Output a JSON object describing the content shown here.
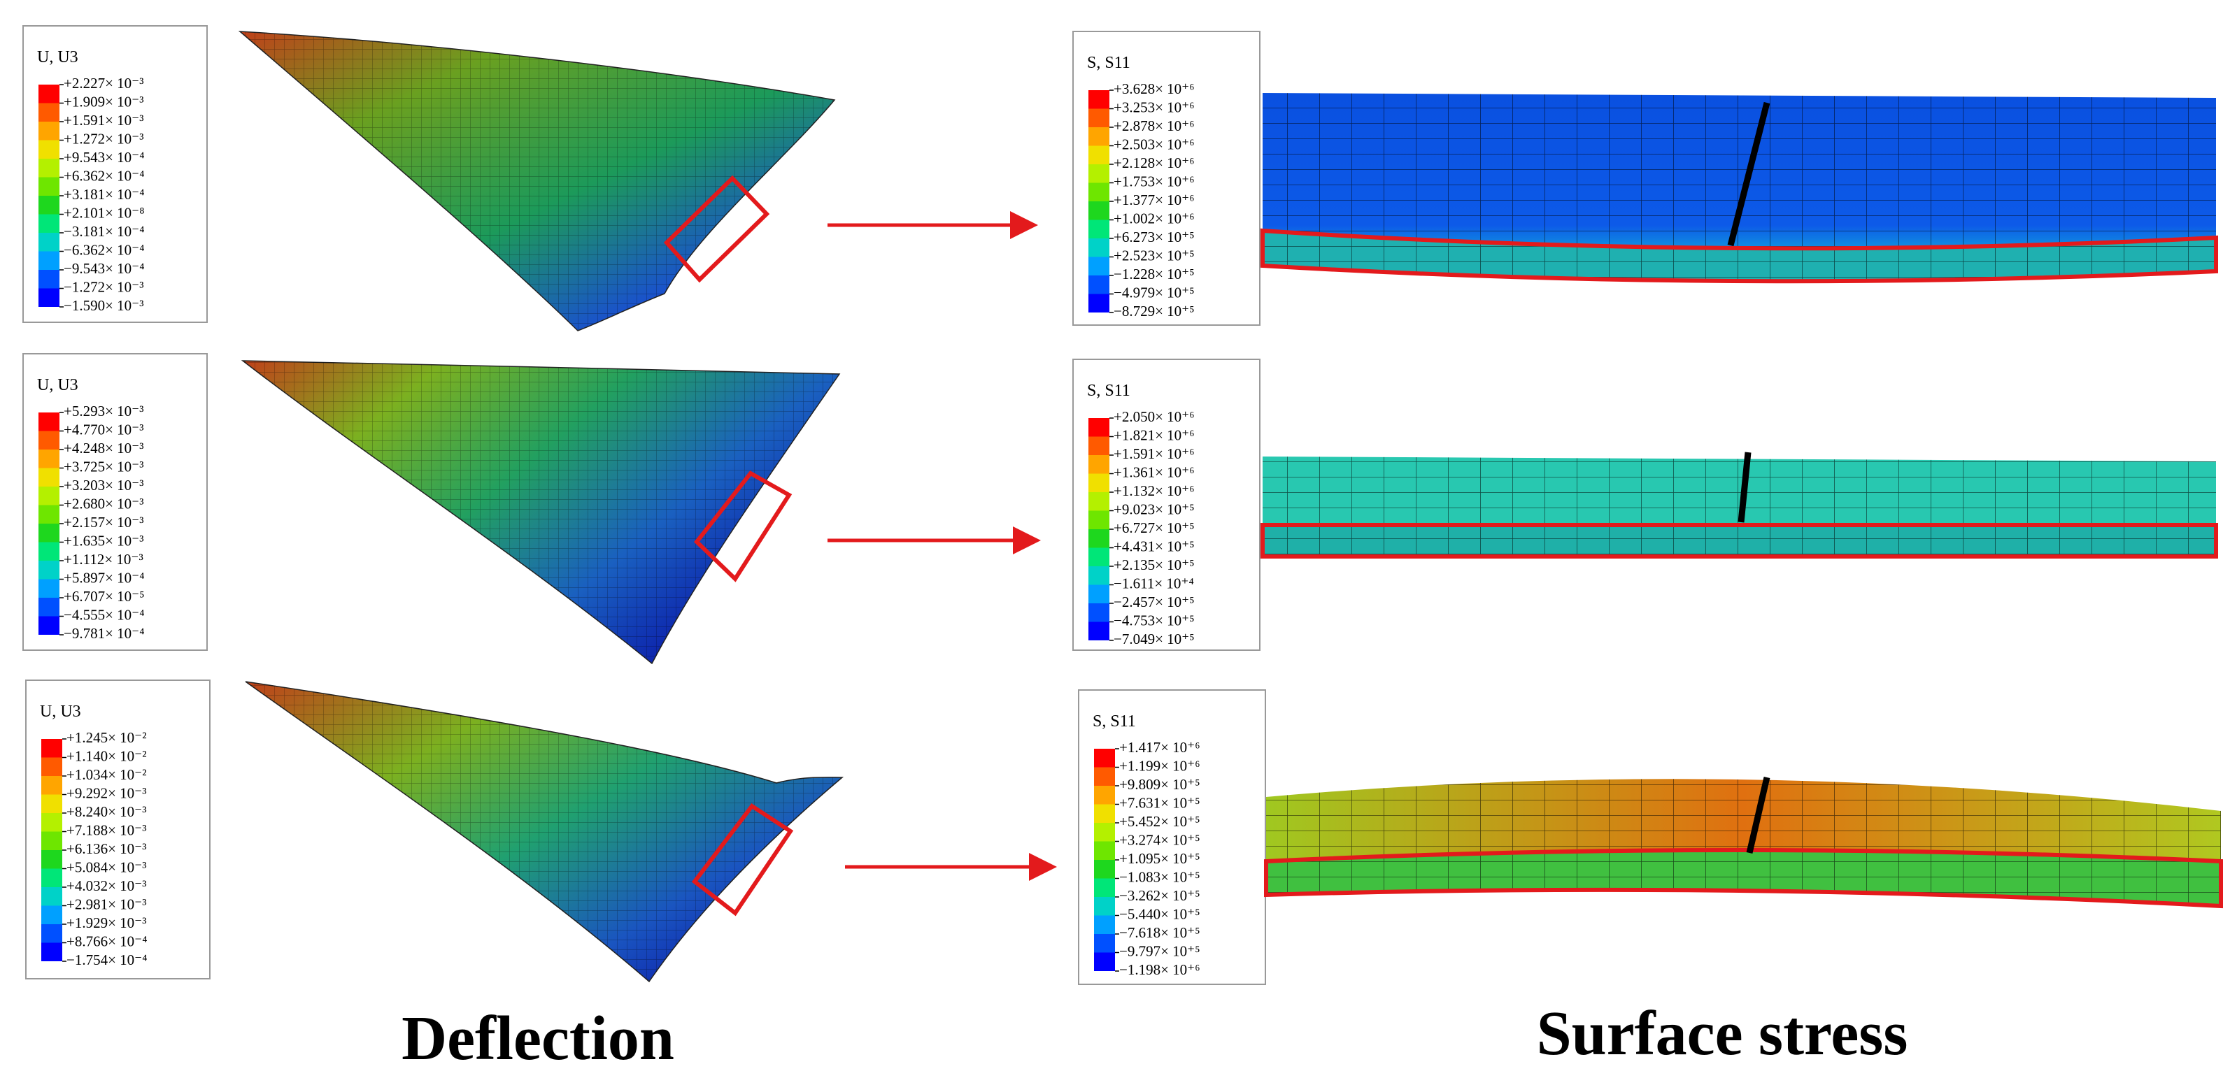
{
  "deflection": {
    "title": "Deflection",
    "panels": [
      {
        "legend_title": "U, U3",
        "levels": [
          "+2.227× 10⁻³",
          "+1.909× 10⁻³",
          "+1.591× 10⁻³",
          "+1.272× 10⁻³",
          "+9.543× 10⁻⁴",
          "+6.362× 10⁻⁴",
          "+3.181× 10⁻⁴",
          "+2.101× 10⁻⁸",
          "−3.181× 10⁻⁴",
          "−6.362× 10⁻⁴",
          "−9.543× 10⁻⁴",
          "−1.272× 10⁻³",
          "−1.590× 10⁻³"
        ]
      },
      {
        "legend_title": "U, U3",
        "levels": [
          "+5.293× 10⁻³",
          "+4.770× 10⁻³",
          "+4.248× 10⁻³",
          "+3.725× 10⁻³",
          "+3.203× 10⁻³",
          "+2.680× 10⁻³",
          "+2.157× 10⁻³",
          "+1.635× 10⁻³",
          "+1.112× 10⁻³",
          "+5.897× 10⁻⁴",
          "+6.707× 10⁻⁵",
          "−4.555× 10⁻⁴",
          "−9.781× 10⁻⁴"
        ]
      },
      {
        "legend_title": "U, U3",
        "levels": [
          "+1.245× 10⁻²",
          "+1.140× 10⁻²",
          "+1.034× 10⁻²",
          "+9.292× 10⁻³",
          "+8.240× 10⁻³",
          "+7.188× 10⁻³",
          "+6.136× 10⁻³",
          "+5.084× 10⁻³",
          "+4.032× 10⁻³",
          "+2.981× 10⁻³",
          "+1.929× 10⁻³",
          "+8.766× 10⁻⁴",
          "−1.754× 10⁻⁴"
        ]
      }
    ]
  },
  "surface_stress": {
    "title": "Surface stress",
    "panels": [
      {
        "legend_title": "S, S11",
        "levels": [
          "+3.628× 10⁺⁶",
          "+3.253× 10⁺⁶",
          "+2.878× 10⁺⁶",
          "+2.503× 10⁺⁶",
          "+2.128× 10⁺⁶",
          "+1.753× 10⁺⁶",
          "+1.377× 10⁺⁶",
          "+1.002× 10⁺⁶",
          "+6.273× 10⁺⁵",
          "+2.523× 10⁺⁵",
          "−1.228× 10⁺⁵",
          "−4.979× 10⁺⁵",
          "−8.729× 10⁺⁵"
        ]
      },
      {
        "legend_title": "S, S11",
        "levels": [
          "+2.050× 10⁺⁶",
          "+1.821× 10⁺⁶",
          "+1.591× 10⁺⁶",
          "+1.361× 10⁺⁶",
          "+1.132× 10⁺⁶",
          "+9.023× 10⁺⁵",
          "+6.727× 10⁺⁵",
          "+4.431× 10⁺⁵",
          "+2.135× 10⁺⁵",
          "−1.611× 10⁺⁴",
          "−2.457× 10⁺⁵",
          "−4.753× 10⁺⁵",
          "−7.049× 10⁺⁵"
        ]
      },
      {
        "legend_title": "S, S11",
        "levels": [
          "+1.417× 10⁺⁶",
          "+1.199× 10⁺⁶",
          "+9.809× 10⁺⁵",
          "+7.631× 10⁺⁵",
          "+5.452× 10⁺⁵",
          "+3.274× 10⁺⁵",
          "+1.095× 10⁺⁵",
          "−1.083× 10⁺⁵",
          "−3.262× 10⁺⁵",
          "−5.440× 10⁺⁵",
          "−7.618× 10⁺⁵",
          "−9.797× 10⁺⁵",
          "−1.198× 10⁺⁶"
        ]
      }
    ]
  }
}
